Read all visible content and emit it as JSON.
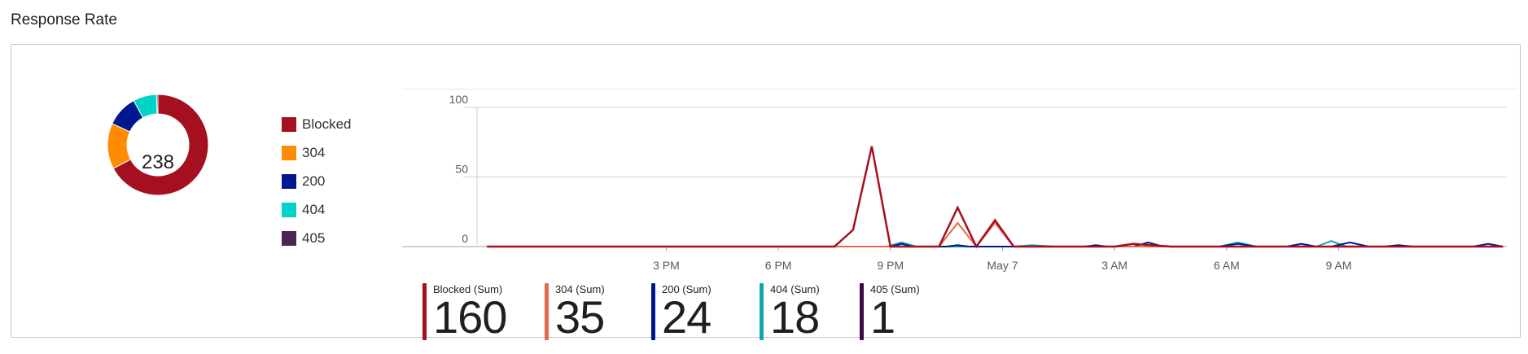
{
  "title": "Response Rate",
  "colors": {
    "blocked": "#a4101f",
    "c304": "#ff8c00",
    "c200": "#00188f",
    "c404": "#00d4c8",
    "c405": "#4b2454",
    "line304": "#e8694a",
    "line404": "#11a3b0",
    "line405": "#3b0a45",
    "grid": "#d0d0d0",
    "axis": "#595959"
  },
  "chart_data": [
    {
      "type": "pie",
      "variant": "donut",
      "center_label": "238",
      "slices": [
        {
          "label": "Blocked",
          "value": 160,
          "color": "#a4101f"
        },
        {
          "label": "304",
          "value": 35,
          "color": "#ff8c00"
        },
        {
          "label": "200",
          "value": 24,
          "color": "#00188f"
        },
        {
          "label": "404",
          "value": 18,
          "color": "#00d4c8"
        },
        {
          "label": "405",
          "value": 1,
          "color": "#4b2454"
        }
      ],
      "legend": [
        "Blocked",
        "304",
        "200",
        "404",
        "405"
      ]
    },
    {
      "type": "line",
      "ylim": [
        0,
        100
      ],
      "y_ticks": [
        {
          "v": 0,
          "label": "0"
        },
        {
          "v": 50,
          "label": "50"
        },
        {
          "v": 100,
          "label": "100"
        }
      ],
      "xlim": [
        10,
        37.5
      ],
      "x_ticks": [
        {
          "v": 15,
          "label": "3 PM"
        },
        {
          "v": 18,
          "label": "6 PM"
        },
        {
          "v": 21,
          "label": "9 PM"
        },
        {
          "v": 24,
          "label": "May 7"
        },
        {
          "v": 27,
          "label": "3 AM"
        },
        {
          "v": 30,
          "label": "6 AM"
        },
        {
          "v": 33,
          "label": "9 AM"
        }
      ],
      "series": [
        {
          "name": "Blocked (Sum)",
          "color": "#a4101f",
          "x": [
            10.2,
            19.5,
            20.0,
            20.5,
            21.0,
            22.3,
            22.8,
            23.3,
            23.8,
            24.3,
            25.0,
            27.0,
            27.5,
            28.5,
            37.4
          ],
          "y": [
            0,
            0,
            12,
            72,
            0,
            0,
            28,
            0,
            19,
            0,
            0,
            0,
            2,
            0,
            0
          ]
        },
        {
          "name": "304 (Sum)",
          "color": "#e8694a",
          "x": [
            10.2,
            22.3,
            22.8,
            23.3,
            23.8,
            24.3,
            37.4
          ],
          "y": [
            0,
            0,
            17,
            0,
            17,
            0,
            0
          ]
        },
        {
          "name": "200 (Sum)",
          "color": "#00188f",
          "x": [
            10.2,
            21.0,
            21.3,
            21.6,
            22.5,
            22.8,
            23.1,
            26.2,
            26.5,
            26.8,
            27.5,
            27.9,
            28.3,
            29.8,
            30.3,
            30.8,
            31.6,
            32.0,
            32.4,
            32.8,
            33.3,
            33.8,
            34.2,
            34.6,
            35.0,
            36.6,
            37.0,
            37.4
          ],
          "y": [
            0,
            0,
            2,
            0,
            0,
            1,
            0,
            0,
            1,
            0,
            0,
            3,
            0,
            0,
            2,
            0,
            0,
            2,
            0,
            0,
            3,
            0,
            0,
            1,
            0,
            0,
            2,
            0
          ]
        },
        {
          "name": "404 (Sum)",
          "color": "#11a3b0",
          "x": [
            10.2,
            20.9,
            21.3,
            21.7,
            24.3,
            24.8,
            25.4,
            29.8,
            30.3,
            30.8,
            32.4,
            32.8,
            33.2,
            37.4
          ],
          "y": [
            0,
            0,
            3,
            0,
            0,
            1,
            0,
            0,
            3,
            0,
            0,
            4,
            0,
            0
          ]
        },
        {
          "name": "405 (Sum)",
          "color": "#3b0a45",
          "x": [
            10.2,
            37.4
          ],
          "y": [
            0,
            0
          ]
        }
      ],
      "summary": [
        {
          "label": "Blocked (Sum)",
          "value": "160",
          "color": "#a4101f"
        },
        {
          "label": "304 (Sum)",
          "value": "35",
          "color": "#e8694a"
        },
        {
          "label": "200 (Sum)",
          "value": "24",
          "color": "#00188f"
        },
        {
          "label": "404 (Sum)",
          "value": "18",
          "color": "#11a3b0"
        },
        {
          "label": "405 (Sum)",
          "value": "1",
          "color": "#3b0a45"
        }
      ]
    }
  ]
}
